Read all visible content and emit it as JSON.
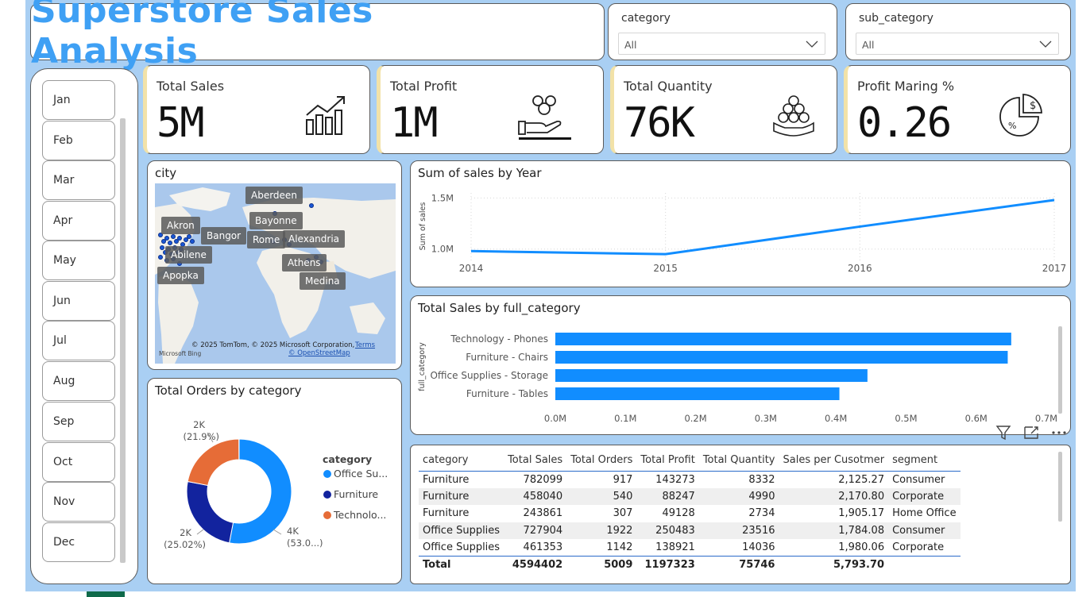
{
  "title": "Superstore Sales Analysis",
  "slicers": [
    {
      "label": "category",
      "value": "All"
    },
    {
      "label": "sub_category",
      "value": "All"
    }
  ],
  "months": [
    "Jan",
    "Feb",
    "Mar",
    "Apr",
    "May",
    "Jun",
    "Jul",
    "Aug",
    "Sep",
    "Oct",
    "Nov",
    "Dec"
  ],
  "kpis": [
    {
      "label": "Total Sales",
      "value": "5M",
      "icon": "growth-chart-icon"
    },
    {
      "label": "Total Profit",
      "value": "1M",
      "icon": "money-hand-icon"
    },
    {
      "label": "Total Quantity",
      "value": "76K",
      "icon": "coin-stack-icon"
    },
    {
      "label": "Profit Maring %",
      "value": "0.26",
      "icon": "percent-pie-icon"
    }
  ],
  "map": {
    "title": "city",
    "cities": [
      "Aberdeen",
      "Akron",
      "Bayonne",
      "Bangor",
      "Rome",
      "Alexandria",
      "Abilene",
      "Athens",
      "Apopka",
      "Medina"
    ],
    "attribution": "© 2025 TomTom, © 2025 Microsoft Corporation,",
    "terms": "Terms",
    "osm": "© OpenStreetMap",
    "logo": "Microsoft Bing"
  },
  "donut": {
    "title": "Total Orders by category",
    "legend_title": "category",
    "slices": [
      {
        "name": "Office Su...",
        "label_top": "4K",
        "label_bottom": "(53.0...)",
        "fraction": 0.53,
        "color": "#118dff"
      },
      {
        "name": "Furniture",
        "label_top": "2K",
        "label_bottom": "(25.02%)",
        "fraction": 0.2502,
        "color": "#12239e"
      },
      {
        "name": "Technolo...",
        "label_top": "2K",
        "label_bottom": "(21.9%)",
        "fraction": 0.219,
        "color": "#e66c37"
      }
    ]
  },
  "chart_data": [
    {
      "type": "line",
      "title": "Sum of sales by Year",
      "ylabel": "Sum of sales",
      "x": [
        "2014",
        "2015",
        "2016",
        "2017"
      ],
      "values": [
        0.98,
        0.95,
        1.22,
        1.48
      ],
      "y_ticks": [
        "1.0M",
        "1.5M"
      ],
      "ylim": [
        0.85,
        1.55
      ],
      "grid": true,
      "color": "#118dff"
    },
    {
      "type": "bar",
      "title": "Total Sales by full_category",
      "ylabel": "full_category",
      "categories": [
        "Technology - Phones",
        "Furniture - Chairs",
        "Office Supplies - Storage",
        "Furniture - Tables"
      ],
      "values": [
        0.65,
        0.645,
        0.445,
        0.405
      ],
      "x_ticks": [
        "0.0M",
        "0.1M",
        "0.2M",
        "0.3M",
        "0.4M",
        "0.5M",
        "0.6M",
        "0.7M"
      ],
      "xlim": [
        0,
        0.7
      ],
      "color": "#118dff"
    }
  ],
  "table": {
    "columns": [
      "category",
      "Total Sales",
      "Total Orders",
      "Total Profit",
      "Total Quantity",
      "Sales per Cusotmer",
      "segment"
    ],
    "rows": [
      [
        "Furniture",
        "782099",
        "917",
        "143273",
        "8332",
        "2,125.27",
        "Consumer"
      ],
      [
        "Furniture",
        "458040",
        "540",
        "88247",
        "4990",
        "2,170.80",
        "Corporate"
      ],
      [
        "Furniture",
        "243861",
        "307",
        "49128",
        "2734",
        "1,905.17",
        "Home Office"
      ],
      [
        "Office Supplies",
        "727904",
        "1922",
        "250483",
        "23516",
        "1,784.08",
        "Consumer"
      ],
      [
        "Office Supplies",
        "461353",
        "1142",
        "138921",
        "14036",
        "1,980.06",
        "Corporate"
      ]
    ],
    "total": [
      "Total",
      "4594402",
      "5009",
      "1197323",
      "75746",
      "5,793.70",
      ""
    ]
  }
}
